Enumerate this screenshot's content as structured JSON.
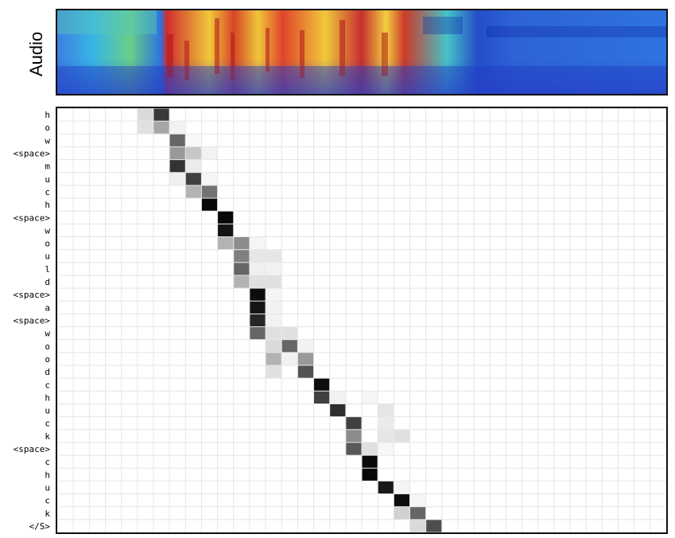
{
  "audio_label": "Audio",
  "colors": {
    "grid": "#e4e4e4",
    "frame": "#111111",
    "cell_max": "#000000",
    "background": "#ffffff"
  },
  "chart_data": {
    "type": "heatmap",
    "xlabel": "",
    "ylabel": "",
    "n_columns": 38,
    "colorscale": "white-to-black (attention weight 0 to 1)",
    "grid": true,
    "rows": [
      "h",
      "o",
      "w",
      "<space>",
      "m",
      "u",
      "c",
      "h",
      "<space>",
      "w",
      "o",
      "u",
      "l",
      "d",
      "<space>",
      "a",
      "<space>",
      "w",
      "o",
      "o",
      "d",
      "c",
      "h",
      "u",
      "c",
      "k",
      "<space>",
      "c",
      "h",
      "u",
      "c",
      "k",
      "</S>"
    ],
    "weights": [
      [
        [
          5,
          0.15
        ],
        [
          6,
          0.78
        ]
      ],
      [
        [
          5,
          0.12
        ],
        [
          6,
          0.35
        ],
        [
          7,
          0.05
        ]
      ],
      [
        [
          7,
          0.6
        ],
        [
          8,
          0.03
        ]
      ],
      [
        [
          7,
          0.4
        ],
        [
          8,
          0.22
        ],
        [
          9,
          0.05
        ]
      ],
      [
        [
          7,
          0.8
        ],
        [
          8,
          0.08
        ]
      ],
      [
        [
          7,
          0.06
        ],
        [
          8,
          0.75
        ],
        [
          9,
          0.04
        ]
      ],
      [
        [
          8,
          0.3
        ],
        [
          9,
          0.55
        ]
      ],
      [
        [
          9,
          0.97
        ]
      ],
      [
        [
          10,
          0.97
        ]
      ],
      [
        [
          10,
          0.92
        ]
      ],
      [
        [
          10,
          0.3
        ],
        [
          11,
          0.45
        ],
        [
          12,
          0.04
        ]
      ],
      [
        [
          11,
          0.5
        ],
        [
          12,
          0.1
        ],
        [
          13,
          0.1
        ]
      ],
      [
        [
          11,
          0.6
        ],
        [
          12,
          0.06
        ],
        [
          13,
          0.05
        ]
      ],
      [
        [
          11,
          0.3
        ],
        [
          12,
          0.12
        ],
        [
          13,
          0.12
        ]
      ],
      [
        [
          12,
          0.95
        ],
        [
          13,
          0.04
        ]
      ],
      [
        [
          12,
          0.92
        ],
        [
          13,
          0.05
        ]
      ],
      [
        [
          12,
          0.85
        ],
        [
          13,
          0.05
        ]
      ],
      [
        [
          12,
          0.6
        ],
        [
          13,
          0.12
        ],
        [
          14,
          0.12
        ]
      ],
      [
        [
          13,
          0.15
        ],
        [
          14,
          0.6
        ],
        [
          15,
          0.05
        ]
      ],
      [
        [
          13,
          0.3
        ],
        [
          14,
          0.05
        ],
        [
          15,
          0.4
        ]
      ],
      [
        [
          13,
          0.12
        ],
        [
          15,
          0.68
        ]
      ],
      [
        [
          16,
          0.95
        ]
      ],
      [
        [
          16,
          0.75
        ],
        [
          17,
          0.05
        ],
        [
          19,
          0.04
        ]
      ],
      [
        [
          17,
          0.82
        ],
        [
          20,
          0.1
        ]
      ],
      [
        [
          18,
          0.75
        ],
        [
          20,
          0.08
        ]
      ],
      [
        [
          18,
          0.45
        ],
        [
          20,
          0.1
        ],
        [
          21,
          0.12
        ]
      ],
      [
        [
          18,
          0.65
        ],
        [
          19,
          0.12
        ],
        [
          20,
          0.03
        ]
      ],
      [
        [
          19,
          0.97
        ]
      ],
      [
        [
          19,
          0.97
        ]
      ],
      [
        [
          20,
          0.9
        ],
        [
          21,
          0.04
        ]
      ],
      [
        [
          21,
          0.95
        ],
        [
          22,
          0.04
        ]
      ],
      [
        [
          21,
          0.18
        ],
        [
          22,
          0.6
        ]
      ],
      [
        [
          22,
          0.15
        ],
        [
          23,
          0.7
        ]
      ]
    ]
  }
}
